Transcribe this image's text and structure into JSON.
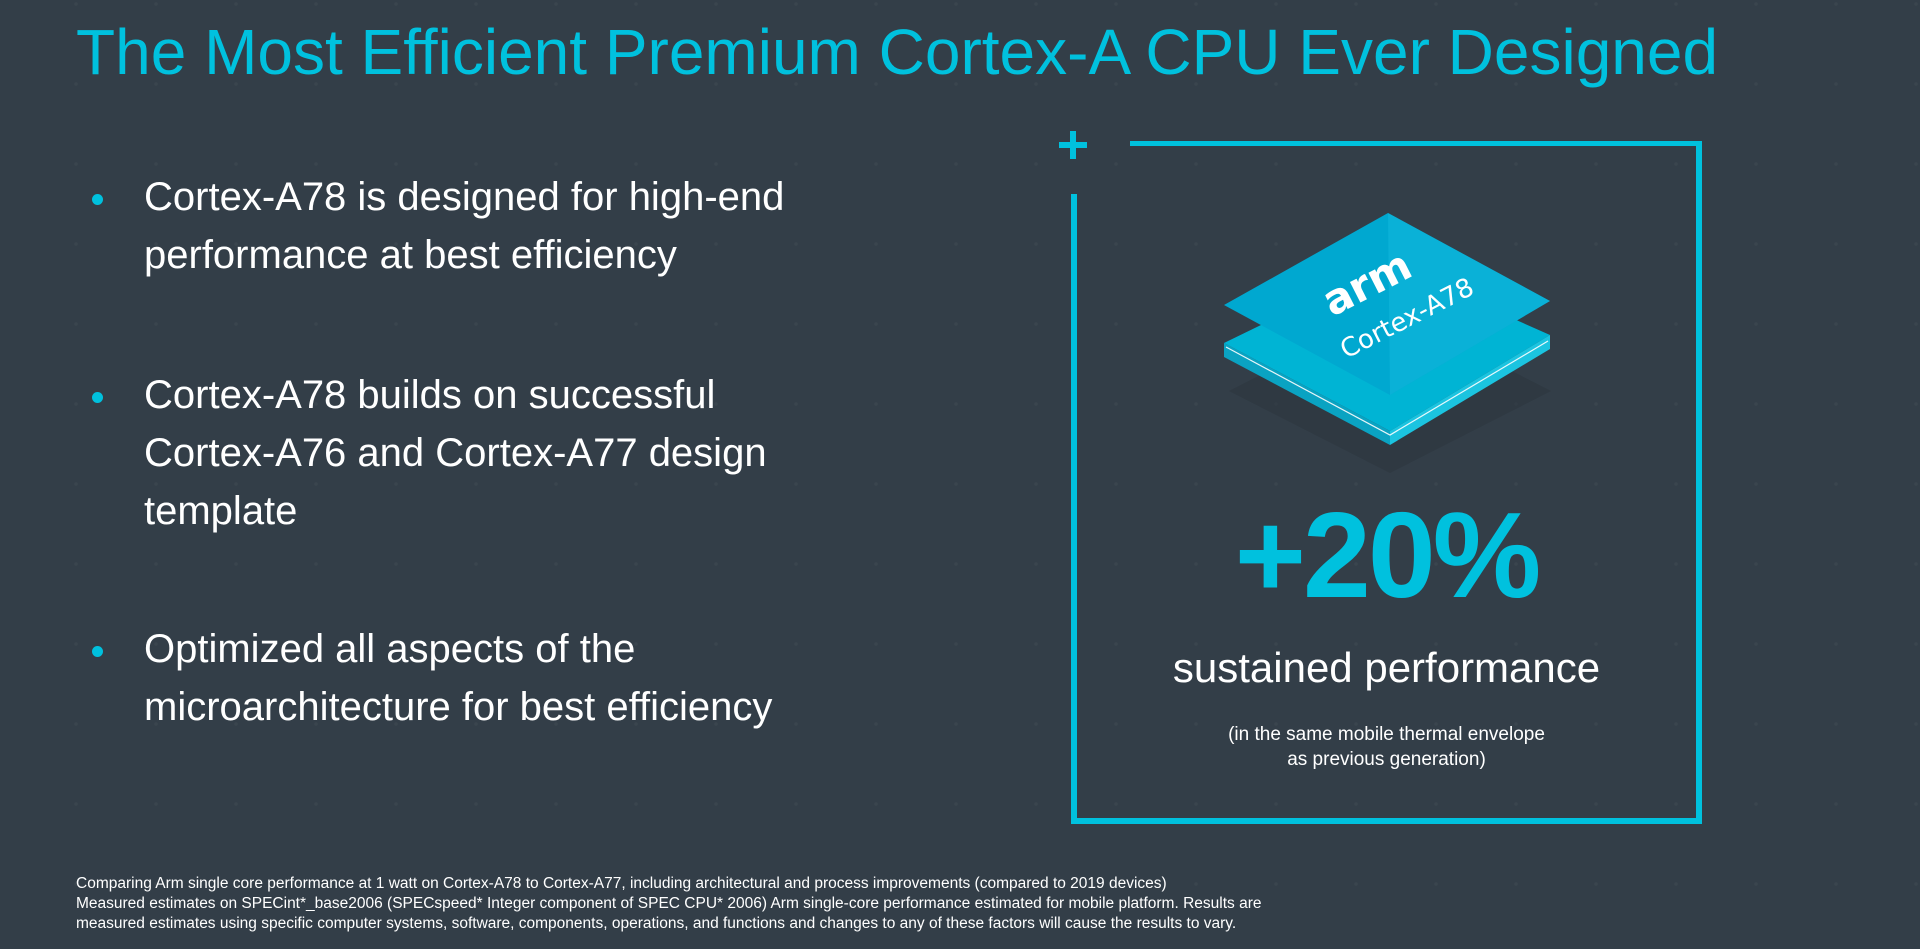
{
  "slide": {
    "title": "The Most Efficient Premium Cortex-A CPU Ever Designed",
    "bullets": [
      {
        "line1": "Cortex-A78 is designed for high-end",
        "line2": "performance at best efficiency"
      },
      {
        "line1": "Cortex-A78 builds on successful",
        "line2": "Cortex-A76 and Cortex-A77 design",
        "line3": "template"
      },
      {
        "line1": "Optimized all aspects of the",
        "line2": "microarchitecture for best efficiency"
      }
    ],
    "chip": {
      "brand": "arm",
      "model": "Cortex-A78"
    },
    "stat": {
      "value": "+20%",
      "label": "sustained performance",
      "note_line1": "(in the same mobile thermal envelope",
      "note_line2": "as previous generation)"
    },
    "footnote": {
      "line1": "Comparing Arm single core performance at 1 watt on Cortex-A78 to Cortex-A77, including architectural and process improvements (compared to 2019 devices)",
      "line2": "Measured estimates on SPECint*_base2006 (SPECspeed* Integer component of SPEC CPU* 2006) Arm single-core performance estimated for mobile platform. Results are",
      "line3": "measured estimates using specific computer systems, software, components, operations, and functions and changes to any of these factors will cause the results to vary."
    },
    "colors": {
      "background": "#333e48",
      "accent": "#00c1de",
      "text": "#ffffff"
    },
    "icons": {
      "corner_mark": "plus-icon",
      "chip_image": "chip-icon"
    }
  }
}
